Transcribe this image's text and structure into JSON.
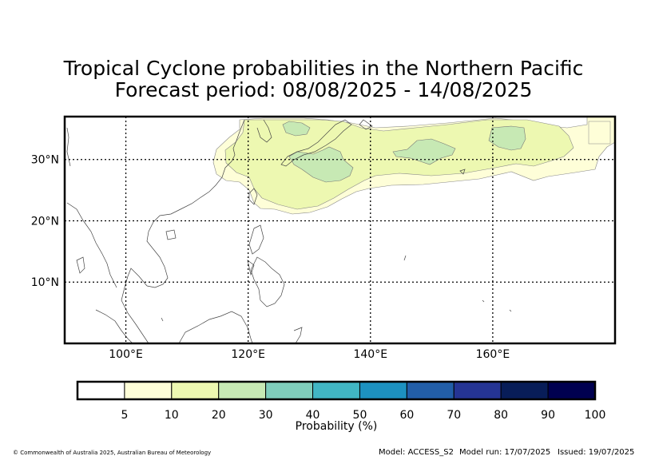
{
  "title_line1": "Tropical Cyclone probabilities in the Northern Pacific",
  "title_line2": "Forecast period: 08/08/2025 - 14/08/2025",
  "map": {
    "lon_range": [
      90,
      180
    ],
    "lat_range": [
      0,
      37
    ],
    "lon_ticks": [
      {
        "value": 100,
        "label": "100°E"
      },
      {
        "value": 120,
        "label": "120°E"
      },
      {
        "value": 140,
        "label": "140°E"
      },
      {
        "value": 160,
        "label": "160°E"
      }
    ],
    "lat_ticks": [
      {
        "value": 10,
        "label": "10°N"
      },
      {
        "value": 20,
        "label": "20°N"
      },
      {
        "value": 30,
        "label": "30°N"
      }
    ],
    "gridlines": "dotted"
  },
  "colorbar": {
    "label": "Probability (%)",
    "ticks": [
      "5",
      "10",
      "20",
      "30",
      "40",
      "50",
      "60",
      "70",
      "80",
      "90",
      "100"
    ],
    "colors": [
      "#ffffff",
      "#fefed8",
      "#edf8b1",
      "#c7e9b4",
      "#7fcdbb",
      "#41b6c4",
      "#1d91c0",
      "#225ea8",
      "#253494",
      "#081d58",
      "#000050"
    ]
  },
  "footer": {
    "copyright": "© Commonwealth of Australia 2025, Australian Bureau of Meteorology",
    "model": "Model: ACCESS_S2",
    "model_run": "Model run: 17/07/2025",
    "issued": "Issued: 19/07/2025"
  }
}
